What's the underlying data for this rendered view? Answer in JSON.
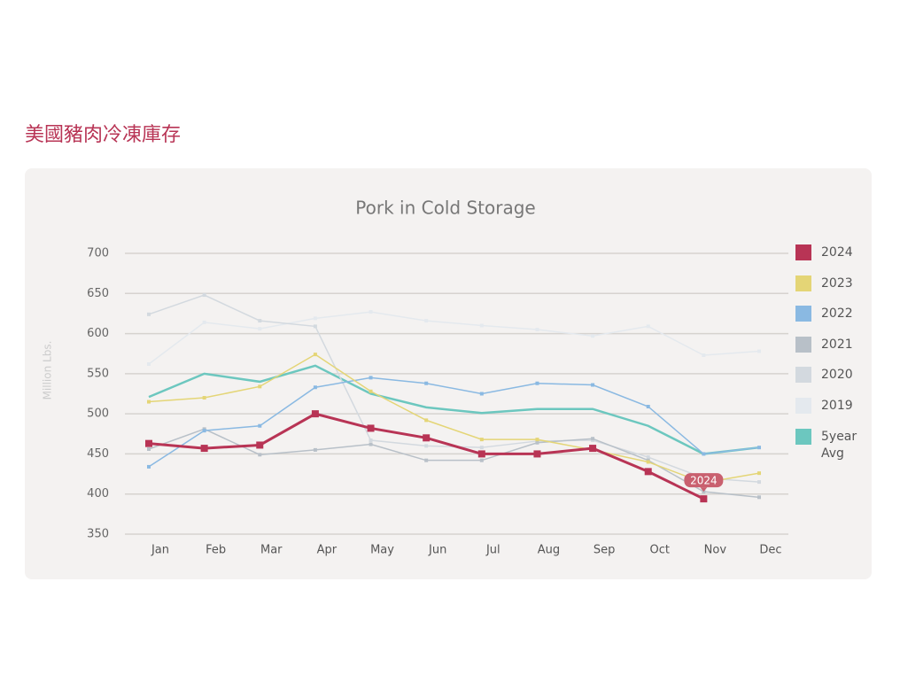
{
  "page_title": "美國豬肉冷凍庫存",
  "chart_data": {
    "type": "line",
    "title": "Pork in Cold Storage",
    "y_label": "Million Lbs.",
    "categories": [
      "Jan",
      "Feb",
      "Mar",
      "Apr",
      "May",
      "Jun",
      "Jul",
      "Aug",
      "Sep",
      "Oct",
      "Nov",
      "Dec"
    ],
    "ylim": [
      350,
      700
    ],
    "yticks": [
      350,
      400,
      450,
      500,
      550,
      600,
      650,
      700
    ],
    "grid": true,
    "legend": "right",
    "series": [
      {
        "name": "2024",
        "color": "#b83455",
        "values": [
          463,
          457,
          461,
          500,
          482,
          470,
          450,
          450,
          457,
          428,
          394,
          null
        ]
      },
      {
        "name": "2023",
        "color": "#e4d576",
        "values": [
          515,
          520,
          534,
          574,
          528,
          492,
          468,
          468,
          455,
          440,
          414,
          426
        ]
      },
      {
        "name": "2022",
        "color": "#8ab9e2",
        "values": [
          434,
          479,
          485,
          533,
          545,
          538,
          525,
          538,
          536,
          509,
          450,
          458
        ]
      },
      {
        "name": "2021",
        "color": "#b8c0c8",
        "values": [
          456,
          481,
          449,
          455,
          462,
          442,
          442,
          464,
          469,
          442,
          403,
          396
        ]
      },
      {
        "name": "2020",
        "color": "#d3d9df",
        "values": [
          624,
          648,
          616,
          609,
          467,
          460,
          458,
          466,
          467,
          446,
          420,
          415
        ]
      },
      {
        "name": "2019",
        "color": "#e4e9ee",
        "values": [
          562,
          614,
          606,
          619,
          627,
          616,
          610,
          605,
          597,
          609,
          573,
          578
        ]
      },
      {
        "name": "5year Avg",
        "color": "#6cc7bf",
        "values": [
          521,
          550,
          540,
          560,
          525,
          508,
          501,
          506,
          506,
          485,
          450,
          458
        ]
      }
    ]
  }
}
